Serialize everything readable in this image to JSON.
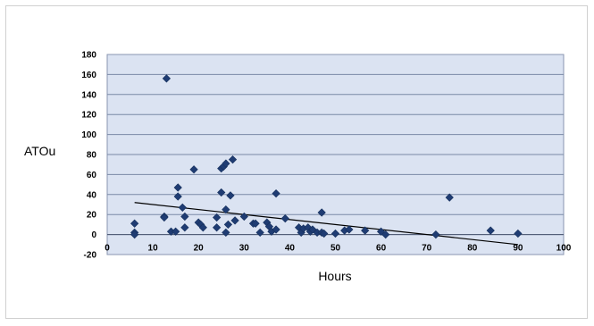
{
  "chart_data": {
    "type": "scatter",
    "xlabel": "Hours",
    "ylabel": "ATOu",
    "xlim": [
      0,
      100
    ],
    "ylim": [
      -20,
      180
    ],
    "x_ticks": [
      0,
      10,
      20,
      30,
      40,
      50,
      60,
      70,
      80,
      90,
      100
    ],
    "y_ticks": [
      -20,
      0,
      20,
      40,
      60,
      80,
      100,
      120,
      140,
      160,
      180
    ],
    "grid": true,
    "legend": "none",
    "colors": {
      "plot_area": "#dbe3f2",
      "marker": "#1f3c73",
      "gridline": "#7a89a6",
      "trendline": "#000000"
    },
    "series": [
      {
        "points": [
          [
            6,
            2
          ],
          [
            6,
            0
          ],
          [
            6,
            11
          ],
          [
            12.5,
            18
          ],
          [
            12.5,
            17
          ],
          [
            13,
            156
          ],
          [
            14,
            3
          ],
          [
            15,
            3
          ],
          [
            15.5,
            47
          ],
          [
            15.5,
            38
          ],
          [
            16.5,
            27
          ],
          [
            17,
            18
          ],
          [
            17,
            7
          ],
          [
            19,
            65
          ],
          [
            20,
            12
          ],
          [
            20.5,
            10
          ],
          [
            21,
            7
          ],
          [
            24,
            17
          ],
          [
            24,
            7
          ],
          [
            25,
            66
          ],
          [
            25,
            42
          ],
          [
            25.5,
            68
          ],
          [
            26,
            71
          ],
          [
            26,
            25
          ],
          [
            26,
            2
          ],
          [
            26.5,
            10
          ],
          [
            27,
            39
          ],
          [
            27.5,
            75
          ],
          [
            28,
            14
          ],
          [
            30,
            18
          ],
          [
            32,
            11
          ],
          [
            32.5,
            11
          ],
          [
            33.5,
            2
          ],
          [
            35,
            12
          ],
          [
            35.5,
            8
          ],
          [
            36,
            3
          ],
          [
            37,
            41
          ],
          [
            37,
            5
          ],
          [
            39,
            16
          ],
          [
            42,
            7
          ],
          [
            42.5,
            2
          ],
          [
            43,
            6
          ],
          [
            44,
            7
          ],
          [
            44.5,
            3
          ],
          [
            45,
            5
          ],
          [
            46,
            2
          ],
          [
            47,
            22
          ],
          [
            47,
            2
          ],
          [
            47.5,
            1
          ],
          [
            50,
            1
          ],
          [
            52,
            4
          ],
          [
            53,
            5
          ],
          [
            56.5,
            4
          ],
          [
            60,
            3
          ],
          [
            61,
            0
          ],
          [
            72,
            0
          ],
          [
            75,
            37
          ],
          [
            84,
            4
          ],
          [
            90,
            1
          ]
        ]
      }
    ],
    "trendline": {
      "x": [
        6,
        90
      ],
      "y": [
        32,
        -10
      ]
    }
  }
}
